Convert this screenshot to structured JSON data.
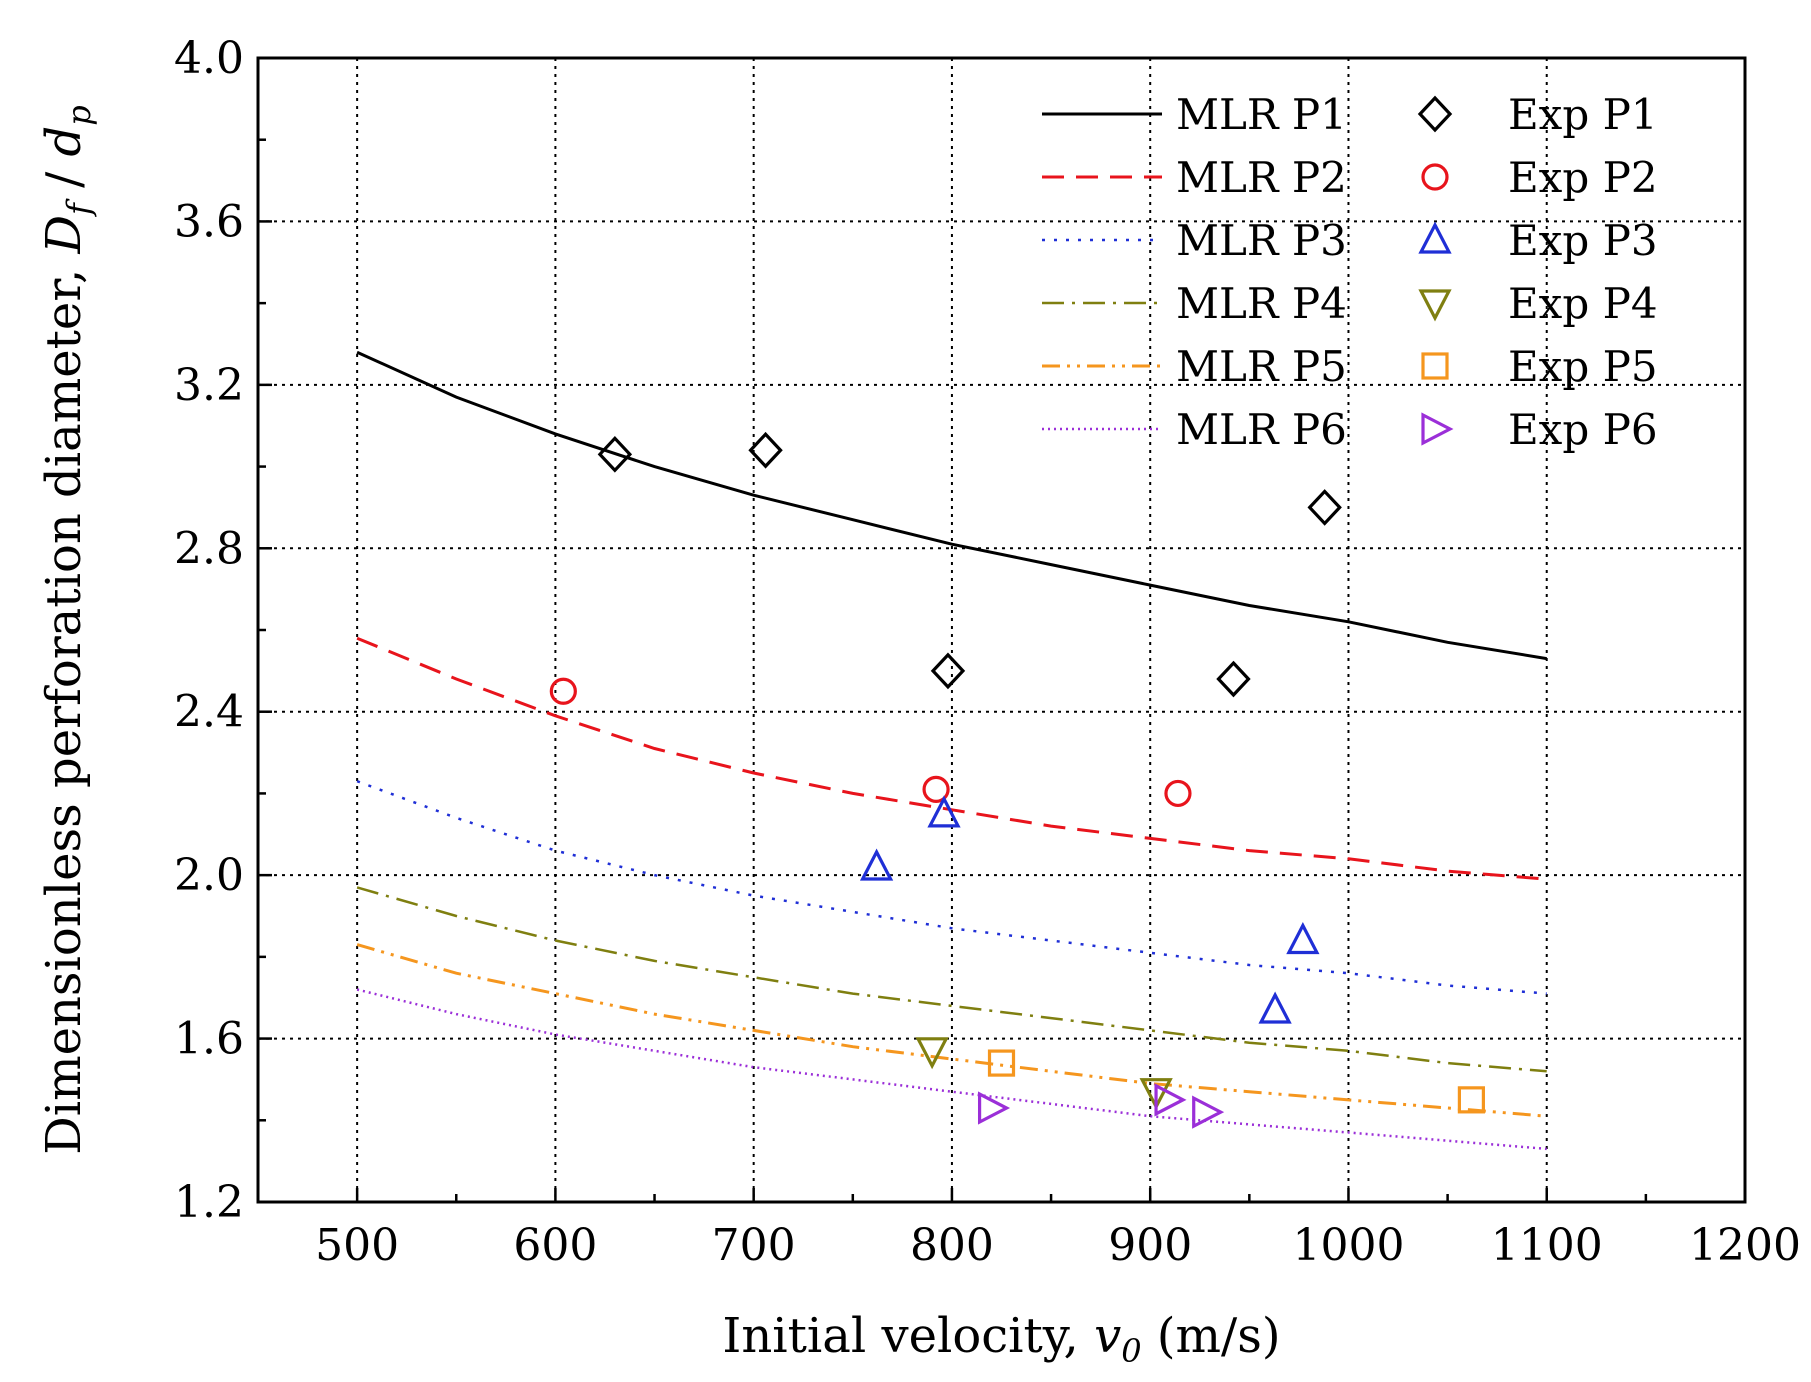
{
  "chart_data": {
    "type": "line",
    "title": "",
    "xlabel": {
      "prefix": "Initial velocity, ",
      "symbol": "v",
      "sub": "0",
      "suffix": " (m/s)"
    },
    "ylabel": {
      "prefix": "Dimensionless perforation diameter, ",
      "num": "D",
      "num_sub": "f",
      "sep": " / ",
      "den": "d",
      "den_sub": "p"
    },
    "xlim": [
      450,
      1200
    ],
    "ylim": [
      1.2,
      4.0
    ],
    "xticks": [
      500,
      600,
      700,
      800,
      900,
      1000,
      1100,
      1200
    ],
    "xtick_labels": [
      "500",
      "600",
      "700",
      "800",
      "900",
      "1000",
      "1100",
      "1200"
    ],
    "yticks": [
      1.2,
      1.6,
      2.0,
      2.4,
      2.8,
      3.2,
      3.6,
      4.0
    ],
    "ytick_labels": [
      "1.2",
      "1.6",
      "2.0",
      "2.4",
      "2.8",
      "3.2",
      "3.6",
      "4.0"
    ],
    "grid": true,
    "legend_position": "top-right",
    "series": [
      {
        "name": "MLR P1",
        "kind": "line",
        "color": "#000000",
        "dash": "solid",
        "x": [
          500,
          550,
          600,
          650,
          700,
          750,
          800,
          850,
          900,
          950,
          1000,
          1050,
          1100
        ],
        "y": [
          3.28,
          3.17,
          3.08,
          3.0,
          2.93,
          2.87,
          2.81,
          2.76,
          2.71,
          2.66,
          2.62,
          2.57,
          2.53
        ]
      },
      {
        "name": "MLR P2",
        "kind": "line",
        "color": "#e8141c",
        "dash": "dash",
        "x": [
          500,
          550,
          600,
          650,
          700,
          750,
          800,
          850,
          900,
          950,
          1000,
          1050,
          1100
        ],
        "y": [
          2.58,
          2.48,
          2.39,
          2.31,
          2.25,
          2.2,
          2.16,
          2.12,
          2.09,
          2.06,
          2.04,
          2.01,
          1.99
        ]
      },
      {
        "name": "MLR P3",
        "kind": "line",
        "color": "#1f2fd6",
        "dash": "dot",
        "x": [
          500,
          550,
          600,
          650,
          700,
          750,
          800,
          850,
          900,
          950,
          1000,
          1050,
          1100
        ],
        "y": [
          2.23,
          2.14,
          2.06,
          2.0,
          1.95,
          1.91,
          1.87,
          1.84,
          1.81,
          1.78,
          1.76,
          1.73,
          1.71
        ]
      },
      {
        "name": "MLR P4",
        "kind": "line",
        "color": "#7f7f10",
        "dash": "dashdot",
        "x": [
          500,
          550,
          600,
          650,
          700,
          750,
          800,
          850,
          900,
          950,
          1000,
          1050,
          1100
        ],
        "y": [
          1.97,
          1.9,
          1.84,
          1.79,
          1.75,
          1.71,
          1.68,
          1.65,
          1.62,
          1.59,
          1.57,
          1.54,
          1.52
        ]
      },
      {
        "name": "MLR P5",
        "kind": "line",
        "color": "#f5961e",
        "dash": "dashdotdot",
        "x": [
          500,
          550,
          600,
          650,
          700,
          750,
          800,
          850,
          900,
          950,
          1000,
          1050,
          1100
        ],
        "y": [
          1.83,
          1.76,
          1.71,
          1.66,
          1.62,
          1.58,
          1.55,
          1.52,
          1.49,
          1.47,
          1.45,
          1.43,
          1.41
        ]
      },
      {
        "name": "MLR P6",
        "kind": "line",
        "color": "#9b2fd8",
        "dash": "shortdot",
        "x": [
          500,
          550,
          600,
          650,
          700,
          750,
          800,
          850,
          900,
          950,
          1000,
          1050,
          1100
        ],
        "y": [
          1.72,
          1.66,
          1.61,
          1.57,
          1.53,
          1.5,
          1.47,
          1.44,
          1.41,
          1.39,
          1.37,
          1.35,
          1.33
        ]
      },
      {
        "name": "Exp P1",
        "kind": "marker",
        "marker": "diamond",
        "color": "#000000",
        "x": [
          630,
          706,
          798,
          942,
          988
        ],
        "y": [
          3.03,
          3.04,
          2.5,
          2.48,
          2.9
        ]
      },
      {
        "name": "Exp P2",
        "kind": "marker",
        "marker": "circle",
        "color": "#e8141c",
        "x": [
          604,
          792,
          914
        ],
        "y": [
          2.45,
          2.21,
          2.2
        ]
      },
      {
        "name": "Exp P3",
        "kind": "marker",
        "marker": "triangle-up",
        "color": "#1f2fd6",
        "x": [
          762,
          796,
          963,
          977
        ],
        "y": [
          2.02,
          2.15,
          1.67,
          1.84
        ]
      },
      {
        "name": "Exp P4",
        "kind": "marker",
        "marker": "triangle-down",
        "color": "#7f7f10",
        "x": [
          790,
          903
        ],
        "y": [
          1.57,
          1.47
        ]
      },
      {
        "name": "Exp P5",
        "kind": "marker",
        "marker": "square",
        "color": "#f5961e",
        "x": [
          825,
          1062
        ],
        "y": [
          1.54,
          1.45
        ]
      },
      {
        "name": "Exp P6",
        "kind": "marker",
        "marker": "triangle-right",
        "color": "#9b2fd8",
        "x": [
          820,
          909,
          928
        ],
        "y": [
          1.43,
          1.45,
          1.42
        ]
      }
    ],
    "legend": {
      "lines": [
        "MLR P1",
        "MLR P2",
        "MLR P3",
        "MLR P4",
        "MLR P5",
        "MLR P6"
      ],
      "markers": [
        "Exp P1",
        "Exp P2",
        "Exp P3",
        "Exp P4",
        "Exp P5",
        "Exp P6"
      ]
    }
  }
}
